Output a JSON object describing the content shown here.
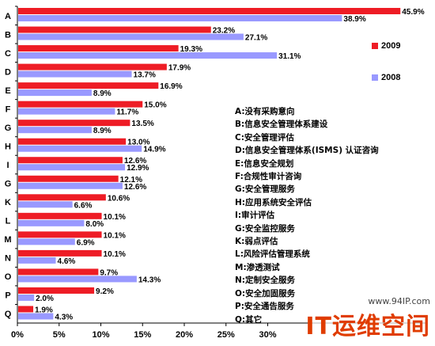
{
  "chart_data": {
    "type": "bar",
    "orientation": "horizontal",
    "categories": [
      "A",
      "B",
      "C",
      "D",
      "E",
      "F",
      "G",
      "H",
      "I",
      "G",
      "K",
      "L",
      "M",
      "N",
      "O",
      "P",
      "Q"
    ],
    "series": [
      {
        "name": "2009",
        "color": "#ee1c25",
        "values": [
          45.9,
          23.2,
          19.3,
          17.9,
          16.9,
          15.0,
          13.5,
          13.0,
          12.6,
          12.1,
          10.6,
          10.1,
          10.1,
          10.1,
          9.7,
          9.2,
          1.9
        ]
      },
      {
        "name": "2008",
        "color": "#9999ff",
        "values": [
          38.9,
          27.1,
          31.1,
          13.7,
          8.9,
          11.7,
          8.9,
          14.9,
          12.9,
          12.6,
          6.6,
          8.0,
          6.9,
          4.6,
          14.3,
          2.0,
          4.3
        ]
      }
    ],
    "xlim": [
      0,
      50
    ],
    "xticks": [
      "0%",
      "5%",
      "10%",
      "15%",
      "20%",
      "25%",
      "30%"
    ],
    "legend_position": "right"
  },
  "legend_descriptions": [
    "A:没有采购意向",
    "B:信息安全管理体系建设",
    "C:安全管理评估",
    "D:信息安全管理体系(ISMS) 认证咨询",
    "E:信息安全规划",
    "F:合规性审计咨询",
    "G:安全管理服务",
    "H:应用系统安全评估",
    "I:审计评估",
    "G:安全监控服务",
    "K:弱点评估",
    "L:风险评估管理系统",
    "M:渗透测试",
    "N:定制安全服务",
    "O:安全加固服务",
    "P:安全通告服务",
    "Q:其它"
  ],
  "watermark": {
    "url": "www.94IP.com",
    "text": "IT运维空间"
  }
}
